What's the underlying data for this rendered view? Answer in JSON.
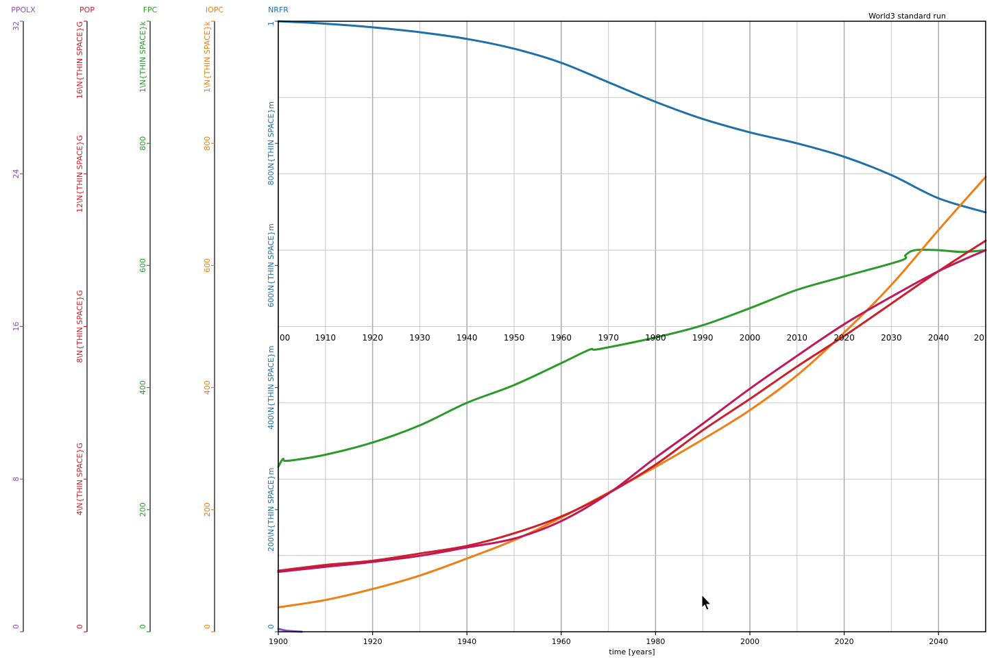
{
  "chart_data": {
    "type": "line",
    "title": "World3 standard run",
    "xlabel": "time [years]",
    "xlim": [
      1900,
      2050
    ],
    "x_ticks": [
      "1900",
      "1920",
      "1940",
      "1960",
      "1980",
      "2000",
      "2020",
      "2040"
    ],
    "mid_ticks": [
      "00",
      "1910",
      "1920",
      "1930",
      "1940",
      "1950",
      "1960",
      "1970",
      "1980",
      "1990",
      "2000",
      "2010",
      "2020",
      "2030",
      "2040",
      "20"
    ],
    "grid": true,
    "axes": [
      {
        "name": "PPOLX",
        "color": "#8a4fbf",
        "ylim": [
          0,
          32
        ],
        "ticks": [
          "0",
          "8",
          "16",
          "24",
          "32"
        ]
      },
      {
        "name": "POP",
        "color": "#cc1f2a",
        "ylim": [
          0,
          16000000000
        ],
        "ticks": [
          "0",
          "4\\N{THIN SPACE}G",
          "8\\N{THIN SPACE}G",
          "12\\N{THIN SPACE}G",
          "16\\N{THIN SPACE}G"
        ]
      },
      {
        "name": "FPC",
        "color": "#2a9a2a",
        "ylim": [
          0,
          1000
        ],
        "ticks": [
          "0",
          "200",
          "400",
          "600",
          "800",
          "1\\N{THIN SPACE}k"
        ]
      },
      {
        "name": "IOPC",
        "color": "#f07f12",
        "ylim": [
          0,
          1000
        ],
        "ticks": [
          "0",
          "200",
          "400",
          "600",
          "800",
          "1\\N{THIN SPACE}k"
        ]
      },
      {
        "name": "NRFR",
        "color": "#1f6fa8",
        "ylim": [
          0,
          1
        ],
        "ticks": [
          "0",
          "200\\N{THIN SPACE}m",
          "400\\N{THIN SPACE}m",
          "600\\N{THIN SPACE}m",
          "800\\N{THIN SPACE}m",
          "1"
        ]
      }
    ],
    "series": [
      {
        "axis": "NRFR",
        "color": "#1f6fa8",
        "x": [
          1900,
          1910,
          1920,
          1930,
          1940,
          1950,
          1960,
          1970,
          1980,
          1990,
          2000,
          2010,
          2020,
          2030,
          2040,
          2050
        ],
        "y": [
          1.0,
          0.996,
          0.99,
          0.982,
          0.971,
          0.955,
          0.932,
          0.9,
          0.868,
          0.84,
          0.818,
          0.8,
          0.778,
          0.748,
          0.71,
          0.687
        ]
      },
      {
        "axis": "FPC",
        "color": "#2a9a2a",
        "x": [
          1900,
          1901,
          1902,
          1910,
          1920,
          1930,
          1940,
          1950,
          1960,
          1966,
          1968,
          1980,
          1990,
          2000,
          2010,
          2020,
          2032,
          2033,
          2035,
          2040,
          2045,
          2050
        ],
        "y": [
          270,
          283,
          280,
          290,
          310,
          338,
          375,
          404,
          440,
          462,
          463,
          482,
          502,
          530,
          560,
          582,
          608,
          617,
          625,
          625,
          622,
          625
        ]
      },
      {
        "axis": "IOPC",
        "color": "#f07f12",
        "x": [
          1900,
          1910,
          1920,
          1930,
          1940,
          1950,
          1960,
          1970,
          1980,
          1990,
          2000,
          2010,
          2020,
          2030,
          2040,
          2050
        ],
        "y": [
          40,
          52,
          70,
          92,
          120,
          150,
          187,
          228,
          270,
          315,
          363,
          420,
          490,
          568,
          658,
          745
        ]
      },
      {
        "axis": "POP",
        "color": "#cc1f2a",
        "x": [
          1900,
          1910,
          1920,
          1930,
          1940,
          1950,
          1960,
          1970,
          1980,
          1990,
          2000,
          2010,
          2020,
          2030,
          2040,
          2050
        ],
        "y": [
          1600000000,
          1750000000,
          1860000000,
          2050000000,
          2250000000,
          2580000000,
          3020000000,
          3630000000,
          4380000000,
          5280000000,
          6100000000,
          6950000000,
          7750000000,
          8600000000,
          9450000000,
          10250000000
        ]
      },
      {
        "axis": "POP",
        "color": "#c0185a",
        "x": [
          1900,
          1910,
          1920,
          1930,
          1940,
          1950,
          1960,
          1970,
          1980,
          1990,
          2000,
          2010,
          2020,
          2030,
          2040,
          2050
        ],
        "y": [
          1570000000,
          1700000000,
          1830000000,
          1990000000,
          2210000000,
          2440000000,
          2900000000,
          3620000000,
          4560000000,
          5450000000,
          6370000000,
          7230000000,
          8060000000,
          8780000000,
          9450000000,
          10000000000
        ]
      },
      {
        "axis": "PPOLX",
        "color": "#8a4fbf",
        "x": [
          1900,
          1902,
          1905
        ],
        "y": [
          0.15,
          0.05,
          0.0
        ]
      }
    ]
  }
}
